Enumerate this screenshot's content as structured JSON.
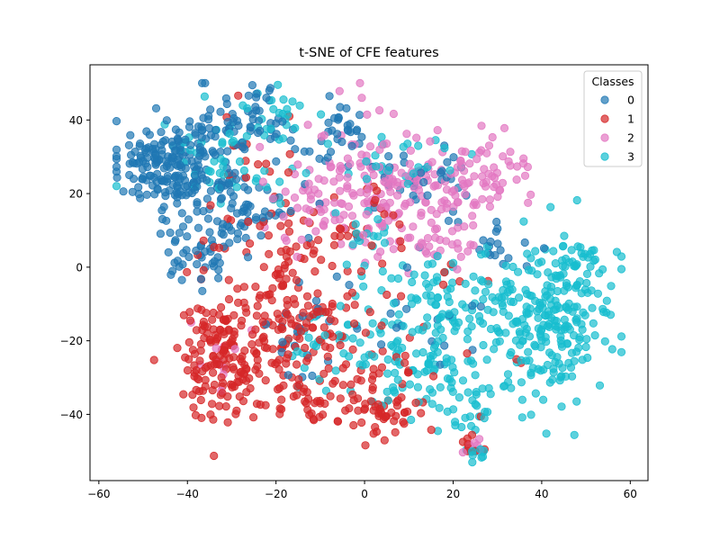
{
  "chart_data": {
    "type": "scatter",
    "title": "t-SNE of CFE features",
    "xlabel": "",
    "ylabel": "",
    "xlim": [
      -62,
      64
    ],
    "ylim": [
      -58,
      55
    ],
    "x_ticks": [
      -60,
      -40,
      -20,
      0,
      20,
      40,
      60
    ],
    "y_ticks": [
      -40,
      -20,
      0,
      20,
      40
    ],
    "grid": false,
    "legend": {
      "title": "Classes",
      "placement": "top-right"
    },
    "series": [
      {
        "name": "0",
        "color": "#1f77b4",
        "clusters": [
          {
            "cx": -47,
            "cy": 28,
            "sx": 5,
            "sy": 6,
            "n": 130
          },
          {
            "cx": -36,
            "cy": 30,
            "sx": 5,
            "sy": 8,
            "n": 90
          },
          {
            "cx": -24,
            "cy": 40,
            "sx": 5,
            "sy": 5,
            "n": 45
          },
          {
            "cx": -28,
            "cy": 15,
            "sx": 7,
            "sy": 7,
            "n": 70
          },
          {
            "cx": -6,
            "cy": 36,
            "sx": 4,
            "sy": 4,
            "n": 30
          },
          {
            "cx": -38,
            "cy": 5,
            "sx": 4,
            "sy": 5,
            "n": 35
          },
          {
            "cx": 10,
            "cy": 25,
            "sx": 5,
            "sy": 5,
            "n": 18
          },
          {
            "cx": 18,
            "cy": 22,
            "sx": 4,
            "sy": 5,
            "n": 14
          },
          {
            "cx": 30,
            "cy": 5,
            "sx": 6,
            "sy": 4,
            "n": 18
          },
          {
            "cx": -15,
            "cy": -15,
            "sx": 8,
            "sy": 8,
            "n": 22
          },
          {
            "cx": 15,
            "cy": -10,
            "sx": 9,
            "sy": 10,
            "n": 20
          }
        ]
      },
      {
        "name": "1",
        "color": "#d62728",
        "clusters": [
          {
            "cx": -33,
            "cy": -25,
            "sx": 5,
            "sy": 8,
            "n": 140
          },
          {
            "cx": -22,
            "cy": -18,
            "sx": 6,
            "sy": 8,
            "n": 80
          },
          {
            "cx": -12,
            "cy": -10,
            "sx": 6,
            "sy": 9,
            "n": 70
          },
          {
            "cx": -12,
            "cy": -35,
            "sx": 5,
            "sy": 4,
            "n": 45
          },
          {
            "cx": 5,
            "cy": -40,
            "sx": 5,
            "sy": 3,
            "n": 40
          },
          {
            "cx": 2,
            "cy": -30,
            "sx": 5,
            "sy": 5,
            "n": 22
          },
          {
            "cx": -18,
            "cy": 8,
            "sx": 10,
            "sy": 7,
            "n": 45
          },
          {
            "cx": 0,
            "cy": 8,
            "sx": 6,
            "sy": 8,
            "n": 20
          },
          {
            "cx": -26,
            "cy": 30,
            "sx": 6,
            "sy": 10,
            "n": 15
          },
          {
            "cx": 12,
            "cy": -20,
            "sx": 8,
            "sy": 9,
            "n": 22
          },
          {
            "cx": 24,
            "cy": -48,
            "sx": 2,
            "sy": 2,
            "n": 8
          }
        ]
      },
      {
        "name": "2",
        "color": "#e377c2",
        "clusters": [
          {
            "cx": 10,
            "cy": 20,
            "sx": 7,
            "sy": 6,
            "n": 90
          },
          {
            "cx": 25,
            "cy": 25,
            "sx": 6,
            "sy": 6,
            "n": 70
          },
          {
            "cx": 15,
            "cy": 8,
            "sx": 6,
            "sy": 4,
            "n": 35
          },
          {
            "cx": 0,
            "cy": 30,
            "sx": 5,
            "sy": 8,
            "n": 35
          },
          {
            "cx": -12,
            "cy": 20,
            "sx": 6,
            "sy": 8,
            "n": 40
          },
          {
            "cx": -32,
            "cy": -28,
            "sx": 5,
            "sy": 8,
            "n": 10
          },
          {
            "cx": -5,
            "cy": 15,
            "sx": 6,
            "sy": 6,
            "n": 20
          },
          {
            "cx": 25,
            "cy": -48,
            "sx": 2,
            "sy": 2,
            "n": 6
          }
        ]
      },
      {
        "name": "3",
        "color": "#17becf",
        "clusters": [
          {
            "cx": 44,
            "cy": -15,
            "sx": 6,
            "sy": 10,
            "n": 190
          },
          {
            "cx": 30,
            "cy": -15,
            "sx": 7,
            "sy": 10,
            "n": 90
          },
          {
            "cx": 15,
            "cy": -12,
            "sx": 7,
            "sy": 8,
            "n": 80
          },
          {
            "cx": 10,
            "cy": -28,
            "sx": 6,
            "sy": 6,
            "n": 40
          },
          {
            "cx": 22,
            "cy": -38,
            "sx": 4,
            "sy": 5,
            "n": 30
          },
          {
            "cx": 25,
            "cy": -50,
            "sx": 2,
            "sy": 2,
            "n": 12
          },
          {
            "cx": 50,
            "cy": 3,
            "sx": 4,
            "sy": 3,
            "n": 20
          },
          {
            "cx": -32,
            "cy": 30,
            "sx": 8,
            "sy": 8,
            "n": 50
          },
          {
            "cx": -20,
            "cy": 42,
            "sx": 5,
            "sy": 5,
            "n": 20
          },
          {
            "cx": -5,
            "cy": -25,
            "sx": 7,
            "sy": 8,
            "n": 40
          },
          {
            "cx": 0,
            "cy": 5,
            "sx": 5,
            "sy": 6,
            "n": 18
          },
          {
            "cx": 10,
            "cy": 30,
            "sx": 8,
            "sy": 5,
            "n": 25
          }
        ]
      }
    ]
  }
}
